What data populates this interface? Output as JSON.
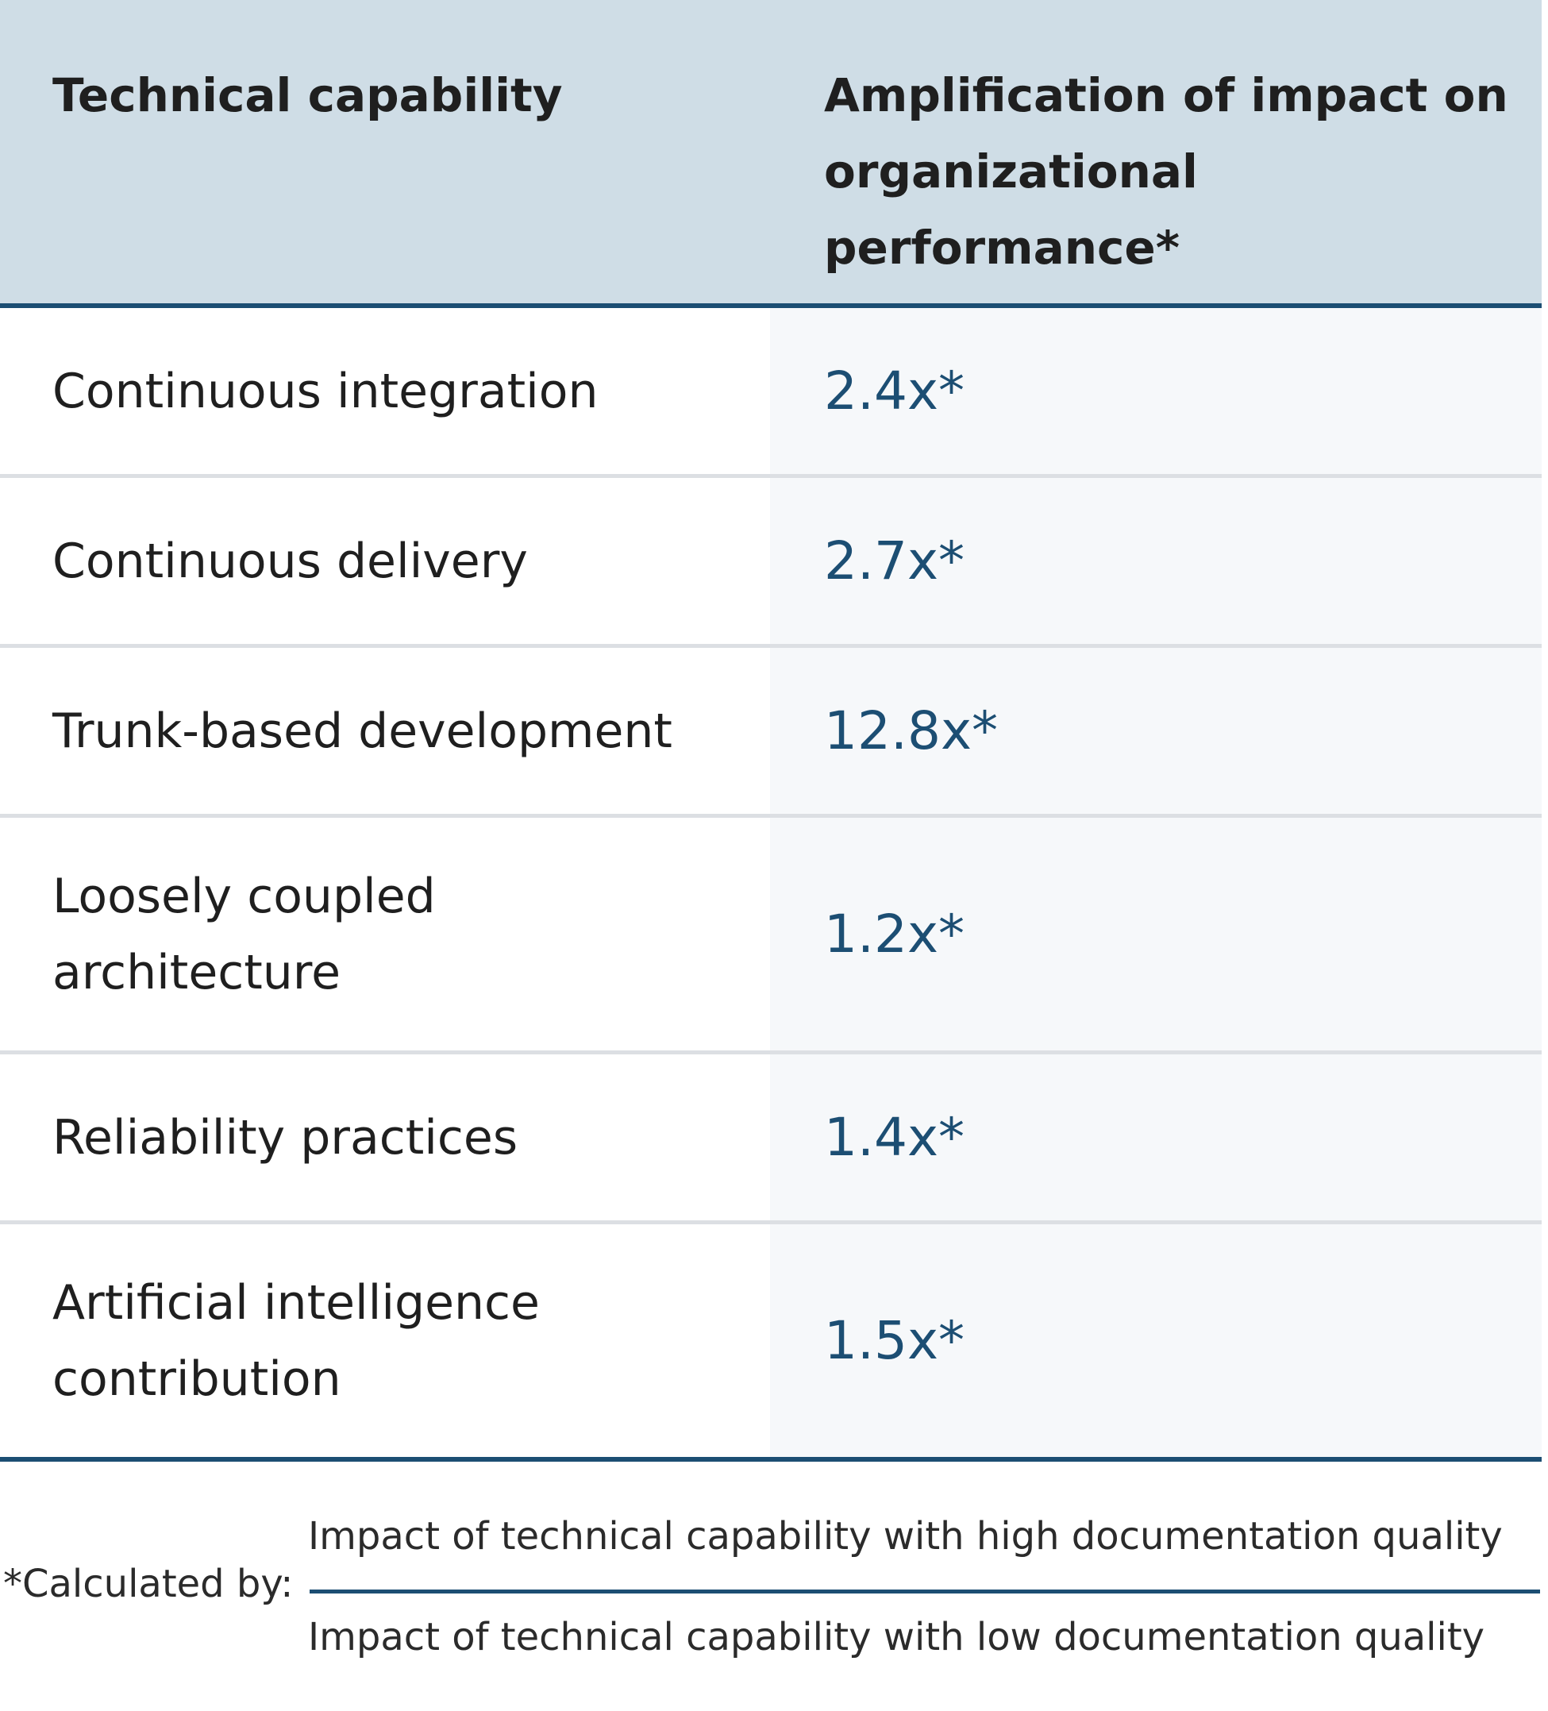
{
  "table": {
    "headers": [
      "Technical capability",
      "Amplification of impact on organizational performance*"
    ],
    "rows": [
      {
        "capability": "Continuous integration",
        "amplification": "2.4x*"
      },
      {
        "capability": "Continuous delivery",
        "amplification": "2.7x*"
      },
      {
        "capability": "Trunk-based development",
        "amplification": "12.8x*"
      },
      {
        "capability": "Loosely coupled architecture",
        "amplification": "1.2x*"
      },
      {
        "capability": "Reliability practices",
        "amplification": "1.4x*"
      },
      {
        "capability": "Artificial intelligence contribution",
        "amplification": "1.5x*"
      }
    ]
  },
  "footnote": {
    "label": "*Calculated by:",
    "numerator": "Impact of technical capability with high documentation quality",
    "denominator": "Impact of technical capability with low documentation quality"
  },
  "colors": {
    "header_bg": "#cfdde6",
    "accent": "#1c4e73",
    "value_text": "#1c4e73",
    "value_col_bg": "#f6f8fa",
    "divider": "#dcdfe3"
  }
}
